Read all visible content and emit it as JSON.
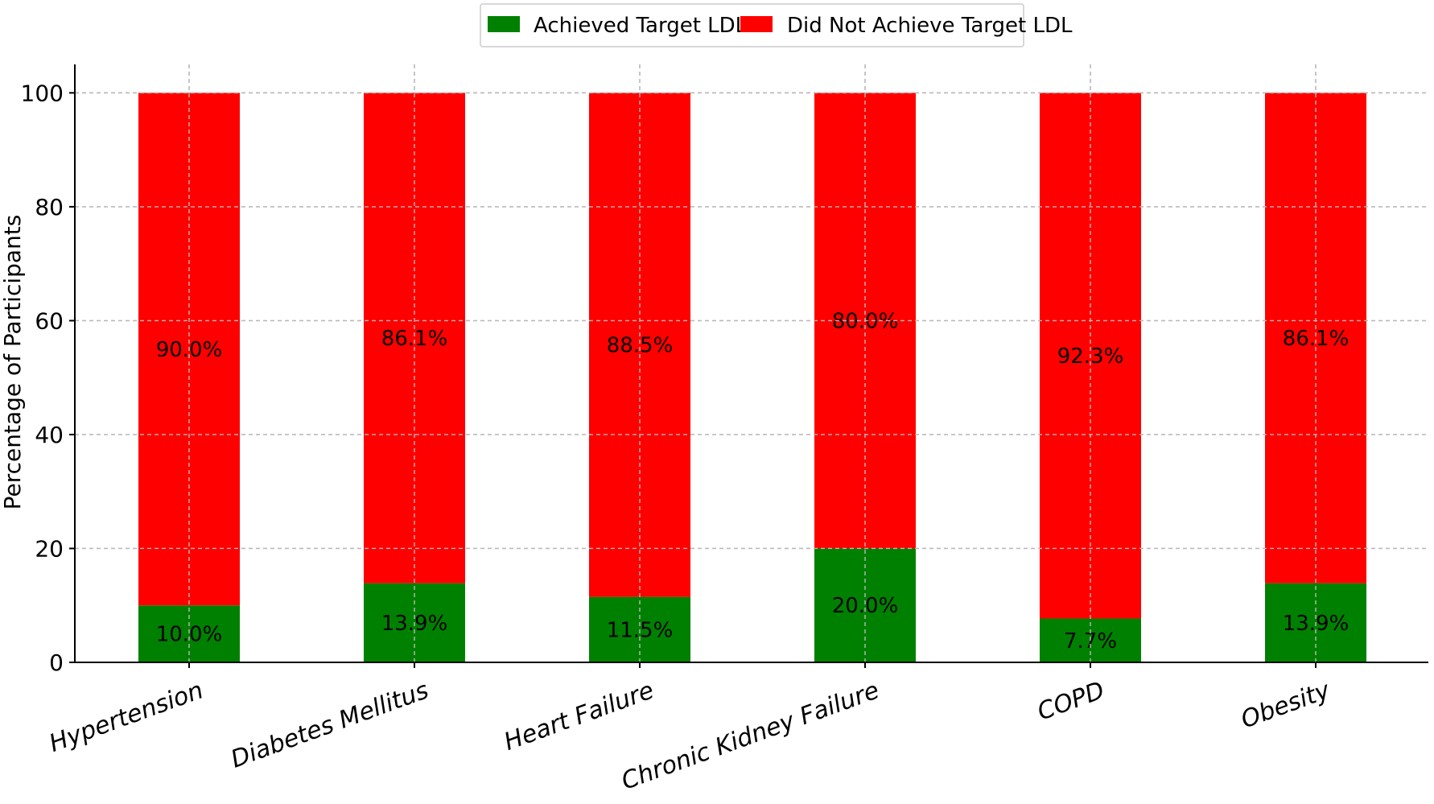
{
  "chart_data": {
    "type": "bar",
    "stacked": true,
    "categories": [
      "Hypertension",
      "Diabetes Mellitus",
      "Heart Failure",
      "Chronic Kidney Failure",
      "COPD",
      "Obesity"
    ],
    "series": [
      {
        "name": "Achieved Target LDL",
        "color": "#008000",
        "values": [
          10.0,
          13.9,
          11.5,
          20.0,
          7.7,
          13.9
        ],
        "labels": [
          "10.0%",
          "13.9%",
          "11.5%",
          "20.0%",
          "7.7%",
          "13.9%"
        ]
      },
      {
        "name": "Did Not Achieve Target LDL",
        "color": "#ff0000",
        "values": [
          90.0,
          86.1,
          88.5,
          80.0,
          92.3,
          86.1
        ],
        "labels": [
          "90.0%",
          "86.1%",
          "88.5%",
          "80.0%",
          "92.3%",
          "86.1%"
        ]
      }
    ],
    "xlabel": "",
    "ylabel": "Percentage of Participants",
    "ylim": [
      0,
      105
    ],
    "yticks": [
      0,
      20,
      40,
      60,
      80,
      100
    ],
    "grid": true,
    "legend_position": "top-center"
  }
}
